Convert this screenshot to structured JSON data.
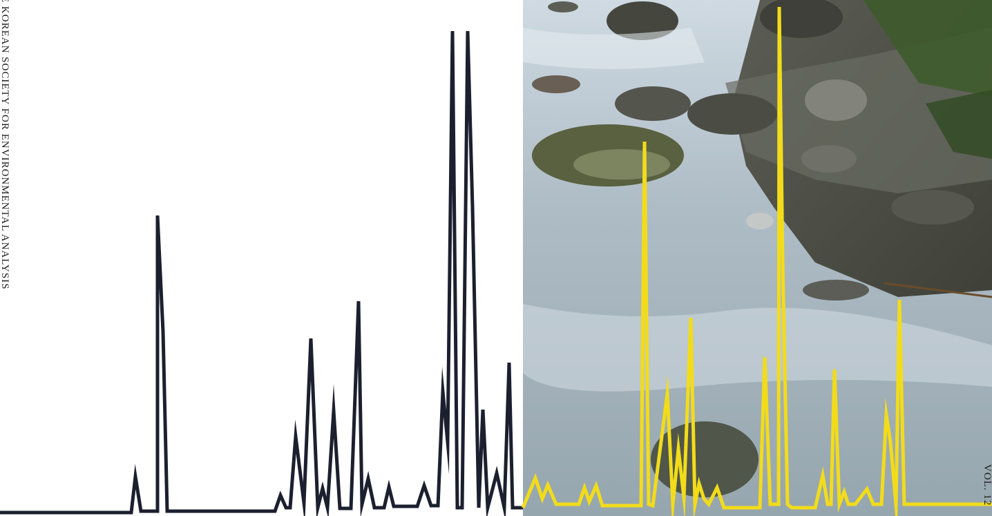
{
  "spine": {
    "journal_name": "E KOREAN SOCIETY FOR ENVIRONMENTAL ANALYSIS",
    "volume": "VOL. 12"
  },
  "colors": {
    "dark_trace": "#1c1f2e",
    "yellow_trace": "#f2dc1a",
    "water": "#a9b9c4",
    "rock": "#4a4d44",
    "moss": "#5f6b3a"
  }
}
